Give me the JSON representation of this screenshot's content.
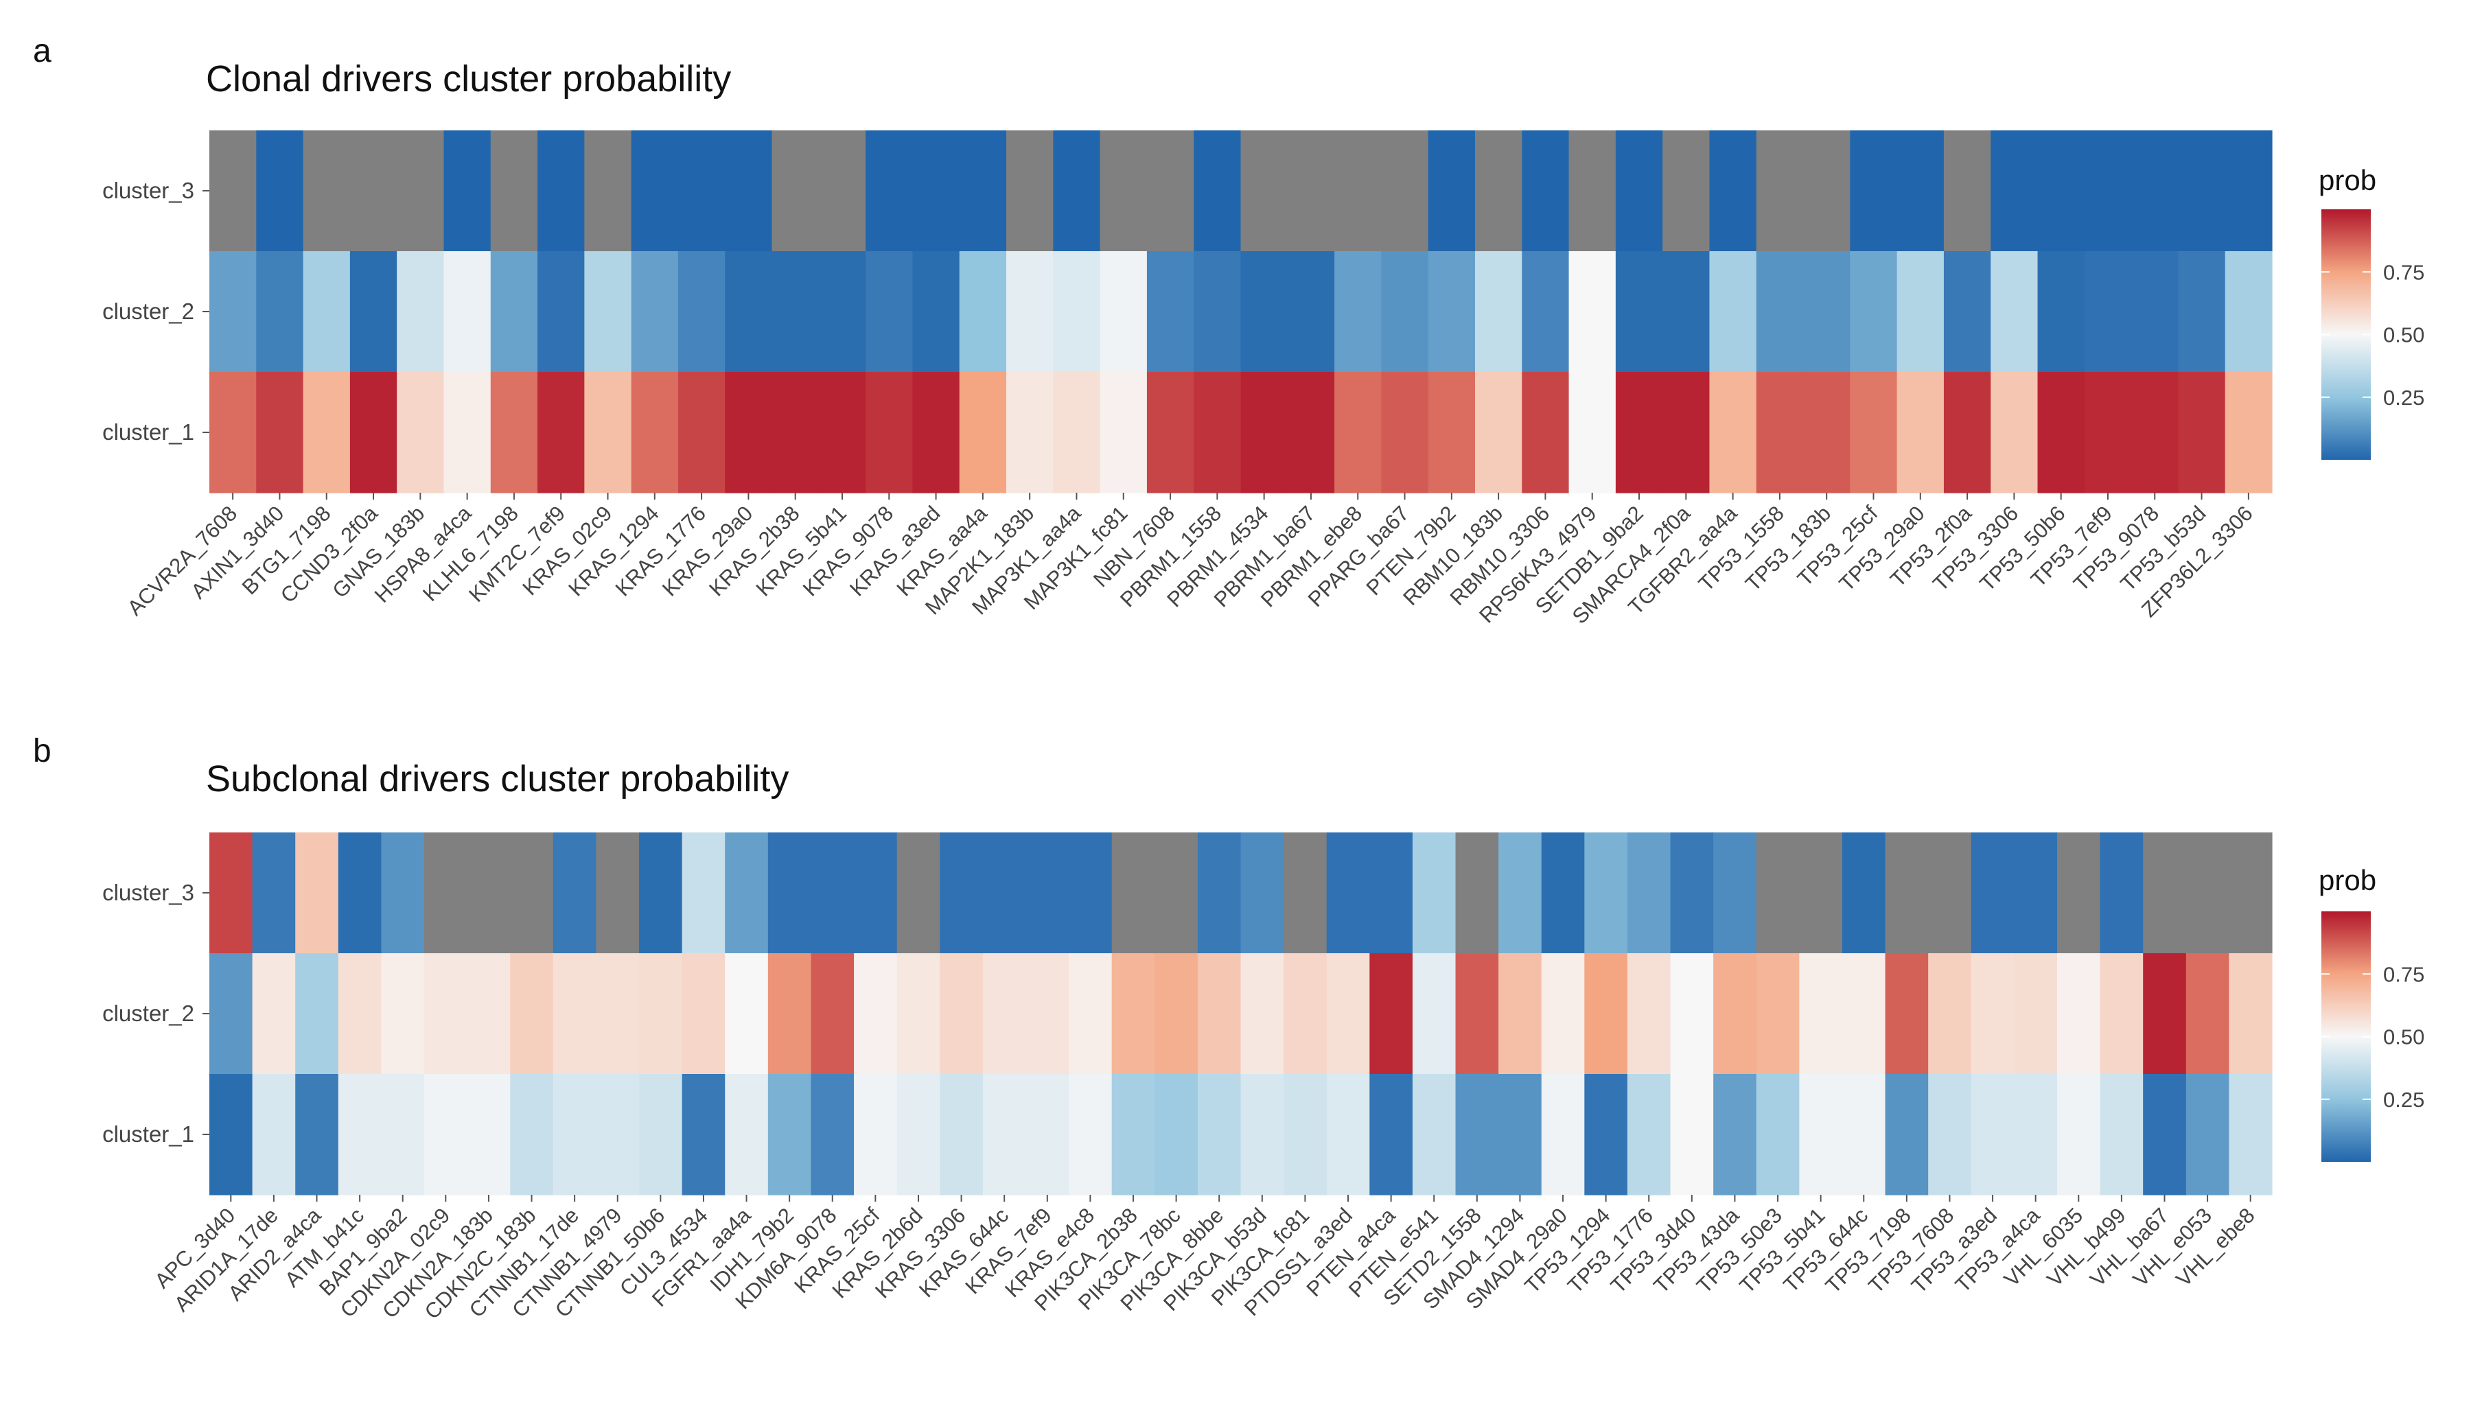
{
  "figure": {
    "panels": [
      {
        "label": "a",
        "title": "Clonal drivers cluster probability",
        "legend_title": "prob"
      },
      {
        "label": "b",
        "title": "Subclonal drivers cluster probability",
        "legend_title": "prob"
      }
    ],
    "colors": {
      "na": "#808080",
      "low": "#2166AC",
      "mid": "#F7F7F7",
      "high": "#B2182B"
    }
  },
  "chart_data": [
    {
      "type": "heatmap",
      "title": "Clonal drivers cluster probability",
      "panel_label": "a",
      "legend_title": "prob",
      "legend_ticks": [
        "0.25",
        "0.50",
        "0.75"
      ],
      "scale_range": [
        0,
        1
      ],
      "rows": [
        "cluster_3",
        "cluster_2",
        "cluster_1"
      ],
      "columns": [
        "ACVR2A_7608",
        "AXIN1_3d40",
        "BTG1_7198",
        "CCND3_2f0a",
        "GNAS_183b",
        "HSPA8_a4ca",
        "KLHL6_7198",
        "KMT2C_7ef9",
        "KRAS_02c9",
        "KRAS_1294",
        "KRAS_1776",
        "KRAS_29a0",
        "KRAS_2b38",
        "KRAS_5b41",
        "KRAS_9078",
        "KRAS_a3ed",
        "KRAS_aa4a",
        "MAP2K1_183b",
        "MAP3K1_aa4a",
        "MAP3K1_fc81",
        "NBN_7608",
        "PBRM1_1558",
        "PBRM1_4534",
        "PBRM1_ba67",
        "PBRM1_ebe8",
        "PPARG_ba67",
        "PTEN_79b2",
        "RBM10_183b",
        "RBM10_3306",
        "RPS6KA3_4979",
        "SETDB1_9ba2",
        "SMARCA4_2f0a",
        "TGFBR2_aa4a",
        "TP53_1558",
        "TP53_183b",
        "TP53_25cf",
        "TP53_29a0",
        "TP53_2f0a",
        "TP53_3306",
        "TP53_50b6",
        "TP53_7ef9",
        "TP53_9078",
        "TP53_b53d",
        "ZFP36L2_3306"
      ],
      "values": {
        "cluster_3": [
          null,
          0.0,
          null,
          null,
          null,
          0.0,
          null,
          0.0,
          null,
          0.0,
          0.0,
          0.0,
          null,
          null,
          0.0,
          0.0,
          0.0,
          null,
          0.0,
          null,
          null,
          0.0,
          null,
          null,
          null,
          null,
          0.0,
          null,
          0.0,
          null,
          0.0,
          null,
          0.0,
          null,
          null,
          0.0,
          0.0,
          null,
          0.0,
          0.0,
          0.0,
          0.0,
          0.0,
          0.0
        ],
        "cluster_2": [
          0.15,
          0.07,
          0.3,
          0.02,
          0.4,
          0.47,
          0.16,
          0.03,
          0.33,
          0.15,
          0.08,
          0.02,
          0.02,
          0.02,
          0.05,
          0.02,
          0.25,
          0.45,
          0.43,
          0.48,
          0.08,
          0.05,
          0.02,
          0.02,
          0.15,
          0.12,
          0.15,
          0.37,
          0.08,
          0.5,
          0.02,
          0.02,
          0.3,
          0.12,
          0.12,
          0.17,
          0.33,
          0.05,
          0.35,
          0.02,
          0.03,
          0.03,
          0.05,
          0.3
        ],
        "cluster_1": [
          0.85,
          0.93,
          0.7,
          0.98,
          0.6,
          0.53,
          0.84,
          0.97,
          0.67,
          0.85,
          0.92,
          0.98,
          0.98,
          0.98,
          0.95,
          0.98,
          0.75,
          0.55,
          0.57,
          0.52,
          0.92,
          0.95,
          0.98,
          0.98,
          0.85,
          0.88,
          0.85,
          0.63,
          0.92,
          0.5,
          0.98,
          0.98,
          0.7,
          0.88,
          0.88,
          0.83,
          0.67,
          0.95,
          0.65,
          0.98,
          0.97,
          0.97,
          0.95,
          0.7
        ]
      }
    },
    {
      "type": "heatmap",
      "title": "Subclonal drivers cluster probability",
      "panel_label": "b",
      "legend_title": "prob",
      "legend_ticks": [
        "0.25",
        "0.50",
        "0.75"
      ],
      "scale_range": [
        0,
        1
      ],
      "rows": [
        "cluster_3",
        "cluster_2",
        "cluster_1"
      ],
      "columns": [
        "APC_3d40",
        "ARID1A_17de",
        "ARID2_a4ca",
        "ATM_b41c",
        "BAP1_9ba2",
        "CDKN2A_02c9",
        "CDKN2A_183b",
        "CDKN2C_183b",
        "CTNNB1_17de",
        "CTNNB1_4979",
        "CTNNB1_50b6",
        "CUL3_4534",
        "FGFR1_aa4a",
        "IDH1_79b2",
        "KDM6A_9078",
        "KRAS_25cf",
        "KRAS_2b6d",
        "KRAS_3306",
        "KRAS_644c",
        "KRAS_7ef9",
        "KRAS_e4c8",
        "PIK3CA_2b38",
        "PIK3CA_78bc",
        "PIK3CA_8bbe",
        "PIK3CA_b53d",
        "PIK3CA_fc81",
        "PTDSS1_a3ed",
        "PTEN_a4ca",
        "PTEN_e541",
        "SETD2_1558",
        "SMAD4_1294",
        "SMAD4_29a0",
        "TP53_1294",
        "TP53_1776",
        "TP53_3d40",
        "TP53_43da",
        "TP53_50e3",
        "TP53_5b41",
        "TP53_644c",
        "TP53_7198",
        "TP53_7608",
        "TP53_a3ed",
        "TP53_a4ca",
        "VHL_6035",
        "VHL_b499",
        "VHL_ba67",
        "VHL_e053",
        "VHL_ebe8"
      ],
      "values": {
        "cluster_3": [
          0.92,
          0.05,
          0.65,
          0.02,
          0.12,
          null,
          null,
          null,
          0.05,
          null,
          0.02,
          0.38,
          0.15,
          0.03,
          0.03,
          0.03,
          null,
          0.03,
          0.03,
          0.03,
          0.03,
          null,
          null,
          0.05,
          0.1,
          null,
          0.03,
          0.03,
          0.3,
          null,
          0.2,
          0.02,
          0.2,
          0.15,
          0.05,
          0.1,
          null,
          null,
          0.02,
          null,
          null,
          0.03,
          0.03,
          null,
          0.03,
          null,
          null,
          null
        ],
        "cluster_2": [
          0.13,
          0.55,
          0.3,
          0.57,
          0.53,
          0.55,
          0.55,
          0.62,
          0.57,
          0.57,
          0.58,
          0.6,
          0.5,
          0.78,
          0.88,
          0.52,
          0.55,
          0.6,
          0.56,
          0.56,
          0.53,
          0.7,
          0.72,
          0.65,
          0.55,
          0.6,
          0.57,
          0.97,
          0.45,
          0.88,
          0.67,
          0.53,
          0.75,
          0.57,
          0.5,
          0.72,
          0.7,
          0.53,
          0.53,
          0.87,
          0.62,
          0.57,
          0.58,
          0.52,
          0.6,
          0.98,
          0.85,
          0.62
        ],
        "cluster_1": [
          0.02,
          0.42,
          0.06,
          0.45,
          0.45,
          0.48,
          0.48,
          0.38,
          0.42,
          0.42,
          0.4,
          0.05,
          0.45,
          0.2,
          0.08,
          0.48,
          0.45,
          0.4,
          0.45,
          0.45,
          0.48,
          0.3,
          0.28,
          0.35,
          0.42,
          0.4,
          0.43,
          0.04,
          0.38,
          0.12,
          0.12,
          0.48,
          0.04,
          0.35,
          0.5,
          0.15,
          0.3,
          0.48,
          0.48,
          0.12,
          0.38,
          0.42,
          0.42,
          0.48,
          0.4,
          0.03,
          0.14,
          0.38
        ]
      }
    }
  ]
}
